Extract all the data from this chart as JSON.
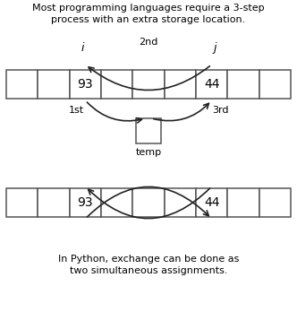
{
  "title_top": "Most programming languages require a 3-step\nprocess with an extra storage location.",
  "title_bottom": "In Python, exchange can be done as\ntwo simultaneous assignments.",
  "bg_color": "#ffffff",
  "n_cells": 9,
  "val1_cell": 2,
  "val2_cell": 6,
  "val1": "93",
  "val2": "44",
  "label_color": "#000000",
  "box_edge_color": "#555555",
  "arrow_color": "#222222",
  "font_size_label": 8,
  "font_size_val": 10,
  "font_size_title": 8
}
